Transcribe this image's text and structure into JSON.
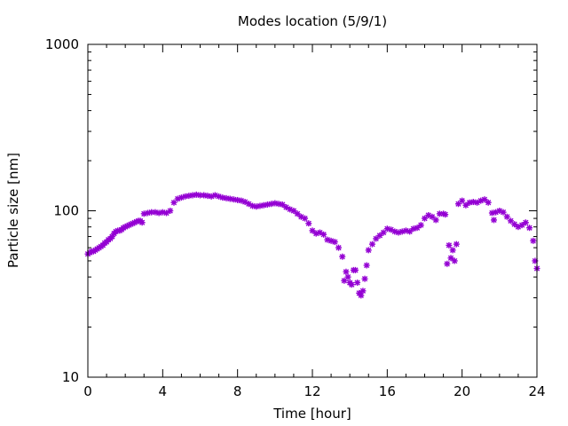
{
  "chart_data": {
    "type": "scatter",
    "title": "Modes location (5/9/1)",
    "xlabel": "Time [hour]",
    "ylabel": "Particle size [nm]",
    "xlim": [
      0,
      24
    ],
    "ylim": [
      10,
      1000
    ],
    "yscale": "log",
    "x_ticks": [
      0,
      4,
      8,
      12,
      16,
      20,
      24
    ],
    "x_tick_labels": [
      "0",
      "4",
      "8",
      "12",
      "16",
      "20",
      "24"
    ],
    "y_ticks": [
      10,
      100,
      1000
    ],
    "y_tick_labels": [
      "10",
      "100",
      "1000"
    ],
    "grid": false,
    "legend": "none",
    "marker_color": "#9400d3",
    "marker": "asterisk",
    "series": [
      {
        "x": [
          0.0,
          0.1,
          0.2,
          0.3,
          0.4,
          0.5,
          0.6,
          0.7,
          0.8,
          0.9,
          1.0,
          1.1,
          1.2,
          1.3,
          1.4,
          1.5,
          1.6,
          1.7,
          1.8,
          1.9,
          2.0,
          2.1,
          2.2,
          2.3,
          2.4,
          2.5,
          2.6,
          2.7,
          2.8,
          2.9,
          3.0,
          3.2,
          3.4,
          3.6,
          3.8,
          4.0,
          4.2,
          4.4,
          4.6,
          4.8,
          5.0,
          5.2,
          5.4,
          5.6,
          5.8,
          6.0,
          6.2,
          6.4,
          6.6,
          6.8,
          7.0,
          7.2,
          7.4,
          7.6,
          7.8,
          8.0,
          8.2,
          8.4,
          8.6,
          8.8,
          9.0,
          9.2,
          9.4,
          9.6,
          9.8,
          10.0,
          10.2,
          10.4,
          10.6,
          10.8,
          11.0,
          11.2,
          11.4,
          11.6,
          11.8,
          12.0,
          12.2,
          12.4,
          12.6,
          12.8,
          13.0,
          13.2,
          13.4,
          13.6,
          13.7,
          13.8,
          13.9,
          14.0,
          14.1,
          14.2,
          14.3,
          14.4,
          14.5,
          14.6,
          14.7,
          14.8,
          14.9,
          15.0,
          15.2,
          15.4,
          15.6,
          15.8,
          16.0,
          16.2,
          16.4,
          16.6,
          16.8,
          17.0,
          17.2,
          17.4,
          17.6,
          17.8,
          18.0,
          18.2,
          18.4,
          18.6,
          18.8,
          19.0,
          19.1,
          19.2,
          19.3,
          19.4,
          19.5,
          19.6,
          19.7,
          19.8,
          20.0,
          20.2,
          20.4,
          20.6,
          20.8,
          21.0,
          21.2,
          21.4,
          21.6,
          21.7,
          21.8,
          22.0,
          22.2,
          22.4,
          22.6,
          22.8,
          23.0,
          23.2,
          23.4,
          23.6,
          23.8,
          23.9,
          24.0
        ],
        "y": [
          55,
          56,
          57,
          57,
          58,
          59,
          60,
          61,
          62,
          64,
          65,
          67,
          68,
          70,
          73,
          75,
          76,
          76,
          77,
          79,
          80,
          81,
          82,
          83,
          84,
          85,
          86,
          87,
          87,
          85,
          96,
          97,
          98,
          98,
          97,
          98,
          97,
          100,
          112,
          118,
          120,
          122,
          123,
          124,
          125,
          124,
          124,
          123,
          122,
          124,
          122,
          120,
          119,
          118,
          117,
          116,
          115,
          113,
          110,
          107,
          106,
          107,
          108,
          109,
          110,
          111,
          110,
          109,
          105,
          102,
          100,
          96,
          92,
          90,
          84,
          76,
          73,
          74,
          72,
          67,
          66,
          65,
          60,
          53,
          38,
          43,
          40,
          37,
          36,
          44,
          44,
          37,
          32,
          31,
          33,
          39,
          47,
          58,
          63,
          68,
          71,
          74,
          78,
          77,
          75,
          74,
          75,
          76,
          75,
          78,
          79,
          82,
          90,
          94,
          92,
          88,
          96,
          96,
          95,
          48,
          62,
          52,
          58,
          50,
          63,
          110,
          115,
          108,
          112,
          113,
          112,
          115,
          117,
          112,
          97,
          88,
          98,
          100,
          98,
          92,
          87,
          83,
          80,
          82,
          85,
          79,
          66,
          50,
          45
        ]
      }
    ]
  }
}
